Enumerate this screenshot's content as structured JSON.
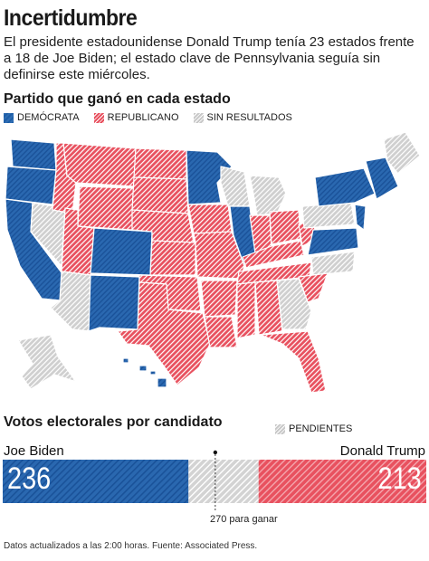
{
  "title": "Incertidumbre",
  "subtitle": "El presidente estadounidense Donald Trump tenía 23 estados frente a 18 de Joe Biden; el estado clave de Pennsylvania seguía sin definirse este miércoles.",
  "map_section": {
    "heading": "Partido que ganó en cada estado",
    "legend": [
      {
        "key": "dem",
        "label": "DEMÓCRATA",
        "color": "#1e5fa8"
      },
      {
        "key": "rep",
        "label": "REPUBLICANO",
        "color": "#e8515f"
      },
      {
        "key": "none",
        "label": "SIN RESULTADOS",
        "color": "#c9c9c9"
      }
    ]
  },
  "votes_section": {
    "heading": "Votos electorales por candidato",
    "pending_label": "PENDIENTES",
    "threshold_label": "270 para ganar"
  },
  "chart_data": {
    "type": "bar",
    "title": "Votos electorales por candidato",
    "total": 538,
    "threshold": 270,
    "series": [
      {
        "name": "Joe Biden",
        "values": [
          236
        ],
        "color": "#1e5fa8"
      },
      {
        "name": "Pendientes",
        "values": [
          89
        ],
        "color": "#c9c9c9"
      },
      {
        "name": "Donald Trump",
        "values": [
          213
        ],
        "color": "#e8515f"
      }
    ]
  },
  "labels": {
    "biden_name": "Joe Biden",
    "trump_name": "Donald Trump",
    "biden_votes": "236",
    "trump_votes": "213"
  },
  "footer": "Datos actualizados a las 2:00 horas. Fuente: Associated Press."
}
